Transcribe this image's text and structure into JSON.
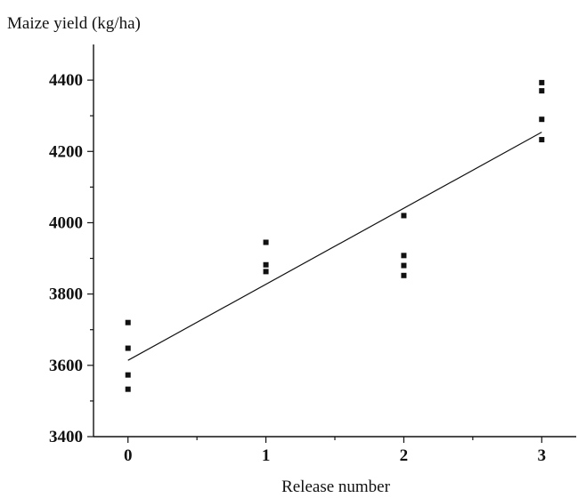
{
  "chart_data": {
    "type": "scatter",
    "title": "",
    "ylabel": "Maize yield (kg/ha)",
    "xlabel": "Release number",
    "xlim": [
      -0.25,
      3.25
    ],
    "ylim": [
      3400,
      4500
    ],
    "x_ticks": [
      0,
      1,
      2,
      3
    ],
    "y_ticks": [
      3400,
      3600,
      3800,
      4000,
      4200,
      4400
    ],
    "grid": false,
    "legend": "none",
    "marker_color": "#111111",
    "series": [
      {
        "points": [
          {
            "x": 0,
            "y": 3720
          },
          {
            "x": 0,
            "y": 3648
          },
          {
            "x": 0,
            "y": 3573
          },
          {
            "x": 0,
            "y": 3533
          },
          {
            "x": 1,
            "y": 3945
          },
          {
            "x": 1,
            "y": 3882
          },
          {
            "x": 1,
            "y": 3863
          },
          {
            "x": 2,
            "y": 4020
          },
          {
            "x": 2,
            "y": 3908
          },
          {
            "x": 2,
            "y": 3880
          },
          {
            "x": 2,
            "y": 3852
          },
          {
            "x": 3,
            "y": 4393
          },
          {
            "x": 3,
            "y": 4370
          },
          {
            "x": 3,
            "y": 4290
          },
          {
            "x": 3,
            "y": 4233
          }
        ]
      }
    ],
    "trendline": {
      "type": "linear",
      "x": [
        0,
        3
      ],
      "y": [
        3614,
        4254
      ]
    }
  }
}
